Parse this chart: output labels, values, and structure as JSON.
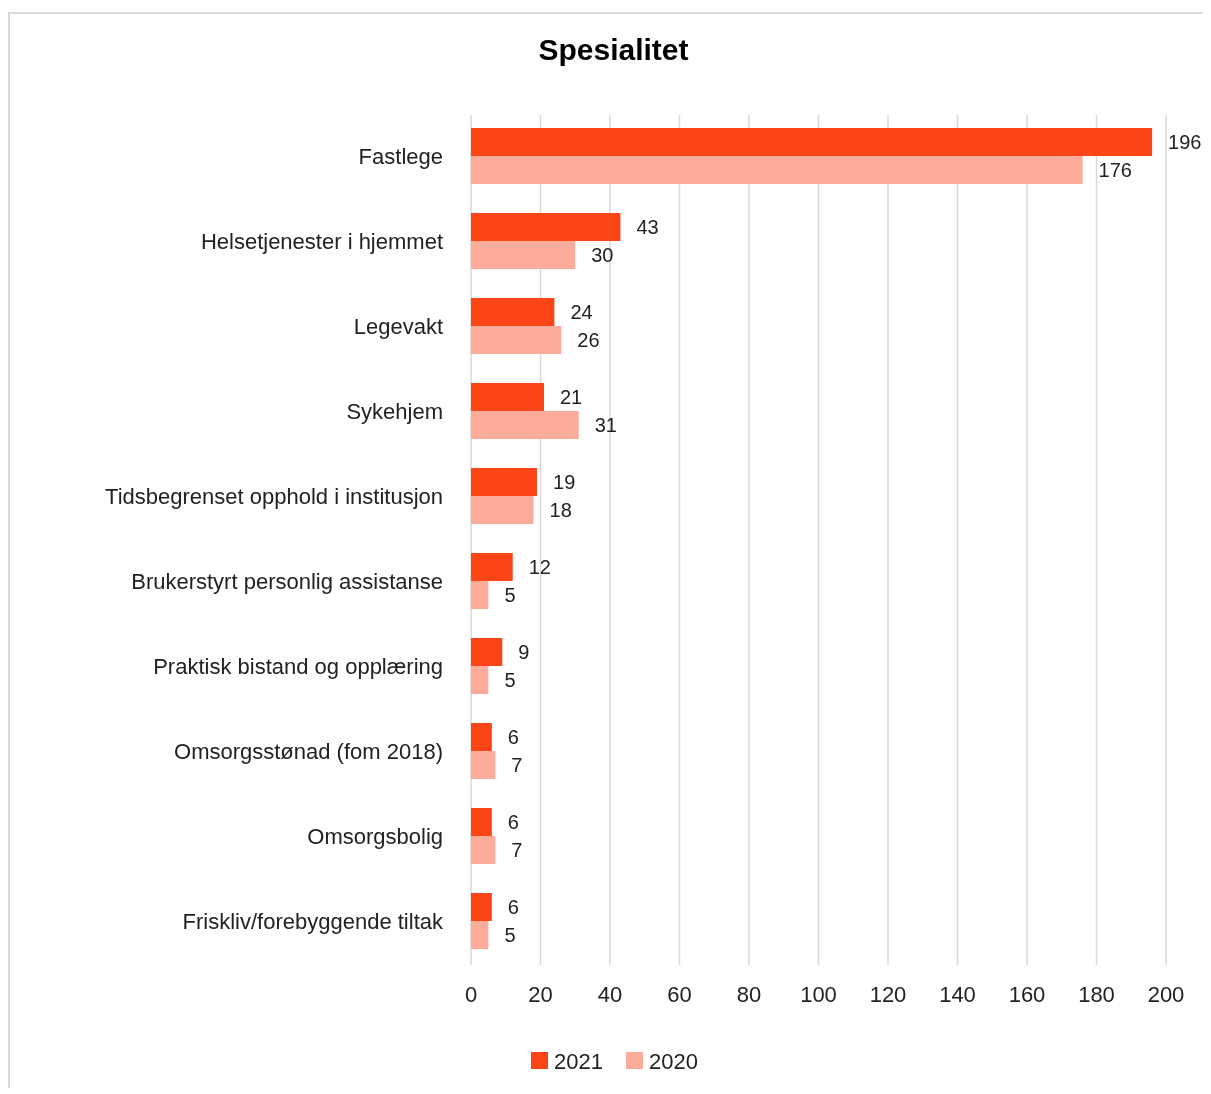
{
  "chart_data": {
    "type": "bar",
    "orientation": "horizontal",
    "title": "Spesialitet",
    "categories": [
      "Fastlege",
      "Helsetjenester i hjemmet",
      "Legevakt",
      "Sykehjem",
      "Tidsbegrenset opphold i institusjon",
      "Brukerstyrt personlig assistanse",
      "Praktisk bistand og opplæring",
      "Omsorgsstønad (fom 2018)",
      "Omsorgsbolig",
      "Friskliv/forebyggende tiltak"
    ],
    "series": [
      {
        "name": "2021",
        "color": "#fc4516",
        "values": [
          196,
          43,
          24,
          21,
          19,
          12,
          9,
          6,
          6,
          6
        ]
      },
      {
        "name": "2020",
        "color": "#fdab9a",
        "values": [
          176,
          30,
          26,
          31,
          18,
          5,
          5,
          7,
          7,
          5
        ]
      }
    ],
    "xlim": [
      0,
      200
    ],
    "xticks": [
      0,
      20,
      40,
      60,
      80,
      100,
      120,
      140,
      160,
      180,
      200
    ],
    "grid": "x",
    "legend": "bottom",
    "data_labels": true
  }
}
